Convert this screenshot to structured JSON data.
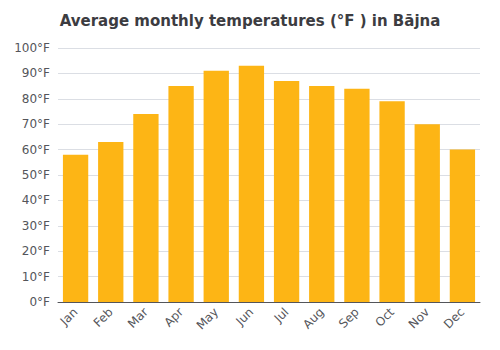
{
  "chart_data": {
    "type": "bar",
    "title": "Average monthly temperatures (°F ) in Bājna",
    "categories": [
      "Jan",
      "Feb",
      "Mar",
      "Apr",
      "May",
      "Jun",
      "Jul",
      "Aug",
      "Sep",
      "Oct",
      "Nov",
      "Dec"
    ],
    "values": [
      58,
      63,
      74,
      85,
      91,
      93,
      87,
      85,
      84,
      79,
      70,
      60
    ],
    "color": "#FDB515",
    "ylim": [
      0,
      100
    ],
    "yticks": [
      {
        "value": 0,
        "label": "0°F"
      },
      {
        "value": 10,
        "label": "10°F"
      },
      {
        "value": 20,
        "label": "20°F"
      },
      {
        "value": 30,
        "label": "30°F"
      },
      {
        "value": 40,
        "label": "40°F"
      },
      {
        "value": 50,
        "label": "50°F"
      },
      {
        "value": 60,
        "label": "60°F"
      },
      {
        "value": 70,
        "label": "70°F"
      },
      {
        "value": 80,
        "label": "80°F"
      },
      {
        "value": 90,
        "label": "90°F"
      },
      {
        "value": 100,
        "label": "100°F"
      }
    ],
    "grid": true
  }
}
